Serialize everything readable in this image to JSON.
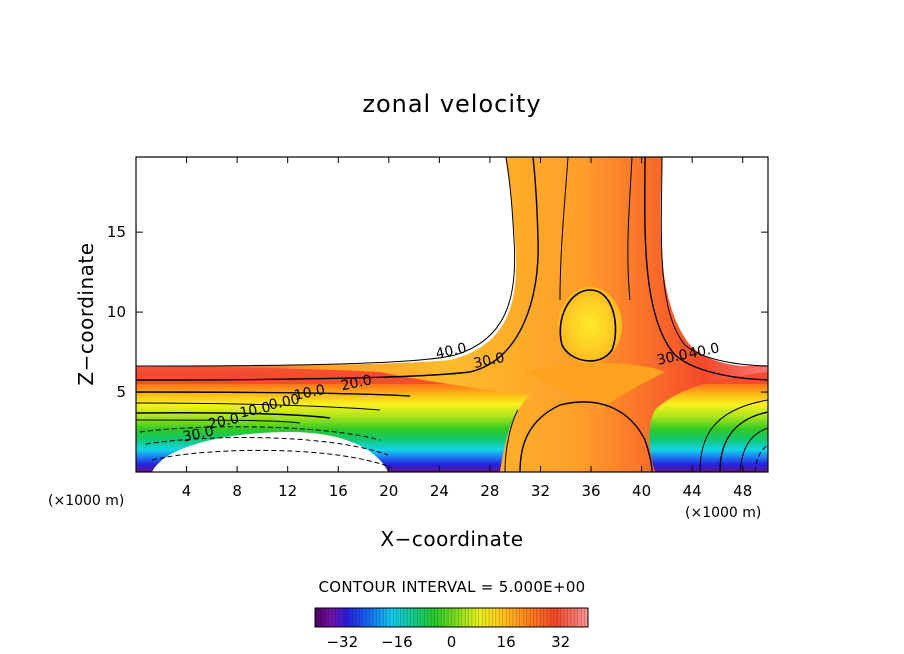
{
  "chart_data": {
    "type": "heatmap",
    "title": "zonal velocity",
    "xlabel": "X−coordinate",
    "ylabel": "Z−coordinate",
    "x_unit_left": "(×1000 m)",
    "x_unit_right": "(×1000 m)",
    "xlim": [
      0,
      50
    ],
    "ylim": [
      0,
      19.7
    ],
    "x_ticks": [
      4,
      8,
      12,
      16,
      20,
      24,
      28,
      32,
      36,
      40,
      44,
      48
    ],
    "y_ticks": [
      5,
      10,
      15
    ],
    "contour_interval_text": "CONTOUR INTERVAL = 5.000E+00",
    "contour_interval": 5,
    "contour_labels": [
      {
        "text": "40.0",
        "x": 25.0,
        "y": 7.3
      },
      {
        "text": "30.0",
        "x": 28.0,
        "y": 6.7
      },
      {
        "text": "20.0",
        "x": 17.5,
        "y": 5.3
      },
      {
        "text": "10.0",
        "x": 13.8,
        "y": 4.7
      },
      {
        "text": "0.00",
        "x": 11.8,
        "y": 4.1
      },
      {
        "text": "10.0",
        "x": 9.5,
        "y": 3.6
      },
      {
        "text": "20.0",
        "x": 7.0,
        "y": 2.9
      },
      {
        "text": "30.0",
        "x": 5.0,
        "y": 2.1
      },
      {
        "text": "30.0",
        "x": 42.5,
        "y": 6.9
      },
      {
        "text": "40.0",
        "x": 45.0,
        "y": 7.3
      }
    ],
    "colorbar": {
      "ticks": [
        -32,
        -16,
        0,
        16,
        32
      ],
      "tick_labels": [
        "−32",
        "−16",
        "0",
        "16",
        "32"
      ],
      "range": [
        -40,
        40
      ]
    },
    "grid": false,
    "legend": "colorbar-bottom"
  }
}
